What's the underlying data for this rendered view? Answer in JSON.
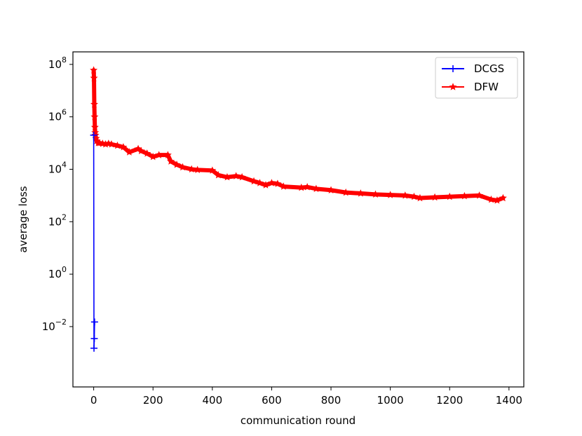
{
  "chart_data": {
    "type": "line",
    "xlabel": "communication round",
    "ylabel": "average loss",
    "xlim": [
      -70,
      1450
    ],
    "ylim": [
      5e-05,
      300000000
    ],
    "yscale": "log",
    "xticks": [
      0,
      200,
      400,
      600,
      800,
      1000,
      1200,
      1400
    ],
    "yticks": [
      {
        "value": 0.01,
        "mantissa": "10",
        "exponent": "−2"
      },
      {
        "value": 1,
        "mantissa": "10",
        "exponent": "0"
      },
      {
        "value": 100,
        "mantissa": "10",
        "exponent": "2"
      },
      {
        "value": 10000,
        "mantissa": "10",
        "exponent": "4"
      },
      {
        "value": 1000000,
        "mantissa": "10",
        "exponent": "6"
      },
      {
        "value": 100000000,
        "mantissa": "10",
        "exponent": "8"
      }
    ],
    "grid": false,
    "legend_position": "top-right",
    "series": [
      {
        "name": "DCGS",
        "color": "#0000ff",
        "marker": "plus",
        "x": [
          0,
          1,
          2,
          3
        ],
        "y": [
          200000,
          0.0015,
          0.0035,
          0.015
        ]
      },
      {
        "name": "DFW",
        "color": "#ff0000",
        "marker": "star",
        "x": [
          0,
          1,
          2,
          3,
          4,
          5,
          6,
          8,
          10,
          15,
          20,
          30,
          40,
          50,
          60,
          80,
          100,
          120,
          150,
          160,
          180,
          200,
          220,
          250,
          260,
          280,
          300,
          330,
          350,
          400,
          420,
          450,
          480,
          500,
          540,
          560,
          580,
          600,
          620,
          640,
          700,
          720,
          750,
          800,
          850,
          900,
          950,
          1000,
          1050,
          1080,
          1100,
          1150,
          1200,
          1250,
          1300,
          1340,
          1360,
          1380
        ],
        "y": [
          60000000,
          30000000,
          3000000,
          1000000,
          400000,
          250000,
          200000,
          150000,
          120000,
          100000,
          100000,
          95000,
          90000,
          95000,
          90000,
          80000,
          70000,
          45000,
          60000,
          50000,
          40000,
          30000,
          35000,
          35000,
          20000,
          15000,
          12000,
          10000,
          9500,
          9000,
          6000,
          5000,
          5500,
          5000,
          3500,
          3000,
          2500,
          3000,
          2800,
          2200,
          2000,
          2100,
          1800,
          1600,
          1300,
          1200,
          1100,
          1050,
          1000,
          900,
          800,
          850,
          900,
          950,
          1000,
          700,
          650,
          800
        ]
      }
    ]
  }
}
